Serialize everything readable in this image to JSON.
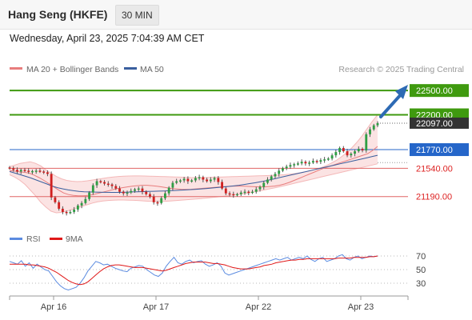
{
  "header": {
    "title": "Hang Seng (HKFE)",
    "timeframe": "30 MIN"
  },
  "datetime": "Wednesday, April 23, 2025 7:04:39 AM CET",
  "legend": {
    "ma20": "MA 20 + Bollinger Bands",
    "ma50": "MA 50",
    "credit": "Research © 2025 Trading Central",
    "rsi": "RSI",
    "ma9": "9MA"
  },
  "colors": {
    "green": "#3f9a0f",
    "blue": "#2566c9",
    "red": "#e06666",
    "candle_up": "#2f9e44",
    "candle_down": "#d02020",
    "ma20": "#e87d7d",
    "ma50": "#3a5f9e",
    "band_fill": "#fbe3e3",
    "rsi": "#5b8be0",
    "rsi_ma": "#e01818",
    "arrow": "#2d6ab4",
    "price_tag": "#333333"
  },
  "chart_data": {
    "type": "candlestick",
    "title": "Hang Seng (HKFE)",
    "interval": "30 MIN",
    "y_range": [
      20970,
      22630
    ],
    "x_labels": [
      "Apr 16",
      "Apr 17",
      "Apr 22",
      "Apr 23"
    ],
    "levels": [
      {
        "label": "22500.00",
        "value": 22500,
        "kind": "target"
      },
      {
        "label": "22200.00",
        "value": 22200,
        "kind": "target"
      },
      {
        "label": "21770.00",
        "value": 21770,
        "kind": "pivot"
      },
      {
        "label": "21540.00",
        "value": 21540,
        "kind": "support"
      },
      {
        "label": "21190.00",
        "value": 21190,
        "kind": "support"
      }
    ],
    "last_price": {
      "label": "22097.00",
      "value": 22097
    },
    "close": [
      21540,
      21520,
      21500,
      21520,
      21510,
      21495,
      21505,
      21510,
      21500,
      21490,
      21470,
      21180,
      21120,
      21040,
      21000,
      20990,
      21000,
      21030,
      21080,
      21110,
      21160,
      21240,
      21330,
      21380,
      21370,
      21350,
      21340,
      21320,
      21290,
      21250,
      21230,
      21240,
      21260,
      21280,
      21290,
      21250,
      21220,
      21190,
      21120,
      21110,
      21170,
      21230,
      21300,
      21360,
      21380,
      21390,
      21410,
      21380,
      21390,
      21420,
      21430,
      21400,
      21380,
      21400,
      21420,
      21370,
      21290,
      21230,
      21220,
      21210,
      21220,
      21240,
      21250,
      21240,
      21250,
      21280,
      21310,
      21360,
      21400,
      21440,
      21470,
      21510,
      21540,
      21560,
      21580,
      21590,
      21600,
      21620,
      21600,
      21610,
      21630,
      21620,
      21640,
      21650,
      21660,
      21700,
      21740,
      21790,
      21750,
      21700,
      21720,
      21750,
      21780,
      21760,
      21960,
      22020,
      22070,
      22097
    ],
    "ma20": [
      21510,
      21505,
      21495,
      21490,
      21480,
      21455,
      21425,
      21390,
      21350,
      21310,
      21270,
      21235,
      21215,
      21205,
      21200,
      21200,
      21205,
      21215,
      21230,
      21245,
      21260,
      21275,
      21290,
      21300,
      21310,
      21318,
      21325,
      21330,
      21330,
      21325,
      21318,
      21310,
      21300,
      21290,
      21285,
      21280,
      21278,
      21280,
      21285,
      21290,
      21295,
      21300,
      21305,
      21310,
      21315,
      21318,
      21320,
      21320,
      21318,
      21315,
      21312,
      21310,
      21310,
      21315,
      21320,
      21330,
      21345,
      21365,
      21390,
      21415,
      21440,
      21465,
      21490,
      21515,
      21540,
      21560,
      21580,
      21600,
      21620,
      21640,
      21660,
      21680,
      21700,
      21720,
      21760,
      21810
    ],
    "ma50": [
      21500,
      21480,
      21460,
      21440,
      21420,
      21395,
      21370,
      21345,
      21320,
      21300,
      21285,
      21272,
      21262,
      21255,
      21250,
      21248,
      21246,
      21244,
      21243,
      21242,
      21242,
      21243,
      21245,
      21248,
      21250,
      21252,
      21254,
      21256,
      21258,
      21260,
      21262,
      21265,
      21268,
      21272,
      21276,
      21280,
      21285,
      21290,
      21296,
      21302,
      21308,
      21315,
      21322,
      21330,
      21340,
      21350,
      21360,
      21372,
      21385,
      21400,
      21415,
      21430,
      21445,
      21460,
      21475,
      21490,
      21505,
      21520,
      21535,
      21550,
      21565,
      21580,
      21595,
      21610,
      21625,
      21640,
      21655,
      21670,
      21685,
      21700
    ],
    "bb_upper": [
      21560,
      21580,
      21600,
      21610,
      21620,
      21600,
      21570,
      21520,
      21480,
      21440,
      21410,
      21390,
      21380,
      21375,
      21378,
      21385,
      21395,
      21405,
      21415,
      21425,
      21432,
      21438,
      21442,
      21444,
      21445,
      21445,
      21444,
      21442,
      21440,
      21438,
      21436,
      21434,
      21432,
      21430,
      21428,
      21426,
      21425,
      21425,
      21426,
      21428,
      21430,
      21432,
      21434,
      21436,
      21438,
      21440,
      21442,
      21444,
      21446,
      21448,
      21450,
      21453,
      21456,
      21460,
      21466,
      21474,
      21484,
      21496,
      21510,
      21526,
      21546,
      21570,
      21600,
      21636,
      21680,
      21730,
      21790,
      21860,
      21940,
      22030,
      22120,
      22200
    ],
    "bb_lower": [
      21460,
      21430,
      21390,
      21340,
      21270,
      21200,
      21120,
      21060,
      21010,
      20990,
      20995,
      21010,
      21030,
      21050,
      21070,
      21090,
      21110,
      21125,
      21135,
      21142,
      21146,
      21148,
      21148,
      21146,
      21144,
      21140,
      21136,
      21132,
      21130,
      21130,
      21132,
      21136,
      21140,
      21145,
      21150,
      21155,
      21160,
      21166,
      21172,
      21178,
      21185,
      21192,
      21200,
      21208,
      21216,
      21225,
      21235,
      21246,
      21258,
      21270,
      21283,
      21296,
      21310,
      21325,
      21340,
      21355,
      21370,
      21385,
      21400,
      21415,
      21430,
      21445,
      21460,
      21475,
      21490,
      21505,
      21520,
      21535,
      21550,
      21565,
      21580,
      21595
    ],
    "rsi": {
      "levels": [
        70,
        50,
        30
      ],
      "rsi_values": [
        62,
        60,
        58,
        63,
        55,
        60,
        52,
        58,
        54,
        50,
        48,
        40,
        32,
        26,
        22,
        20,
        22,
        24,
        30,
        38,
        48,
        55,
        62,
        60,
        57,
        58,
        55,
        52,
        50,
        48,
        47,
        52,
        54,
        56,
        55,
        50,
        46,
        42,
        40,
        45,
        55,
        62,
        68,
        60,
        58,
        62,
        64,
        60,
        62,
        63,
        58,
        55,
        57,
        60,
        55,
        45,
        42,
        44,
        46,
        48,
        50,
        52,
        54,
        56,
        58,
        60,
        62,
        64,
        66,
        64,
        66,
        68,
        64,
        66,
        68,
        66,
        70,
        65,
        62,
        66,
        68,
        62,
        64,
        66,
        70,
        72,
        66,
        64,
        68,
        70,
        66,
        68,
        70,
        69,
        70
      ],
      "ma9_values": [
        58,
        58,
        58,
        58,
        58,
        57,
        57,
        56,
        55,
        54,
        52,
        49,
        46,
        42,
        38,
        34,
        31,
        29,
        28,
        29,
        32,
        37,
        42,
        47,
        51,
        54,
        56,
        57,
        57,
        56,
        55,
        54,
        53,
        53,
        53,
        52,
        51,
        50,
        49,
        48,
        49,
        51,
        53,
        55,
        57,
        59,
        60,
        61,
        61,
        61,
        61,
        60,
        59,
        59,
        58,
        57,
        55,
        53,
        52,
        51,
        51,
        51,
        52,
        53,
        54,
        56,
        57,
        58,
        60,
        61,
        62,
        63,
        64,
        64,
        65,
        65,
        66,
        66,
        66,
        66,
        66,
        66,
        66,
        66,
        67,
        67,
        67,
        67,
        68,
        68,
        68,
        68,
        69,
        69,
        70
      ]
    }
  },
  "rsi_labels": {
    "l70": "70",
    "l50": "50",
    "l30": "30"
  }
}
